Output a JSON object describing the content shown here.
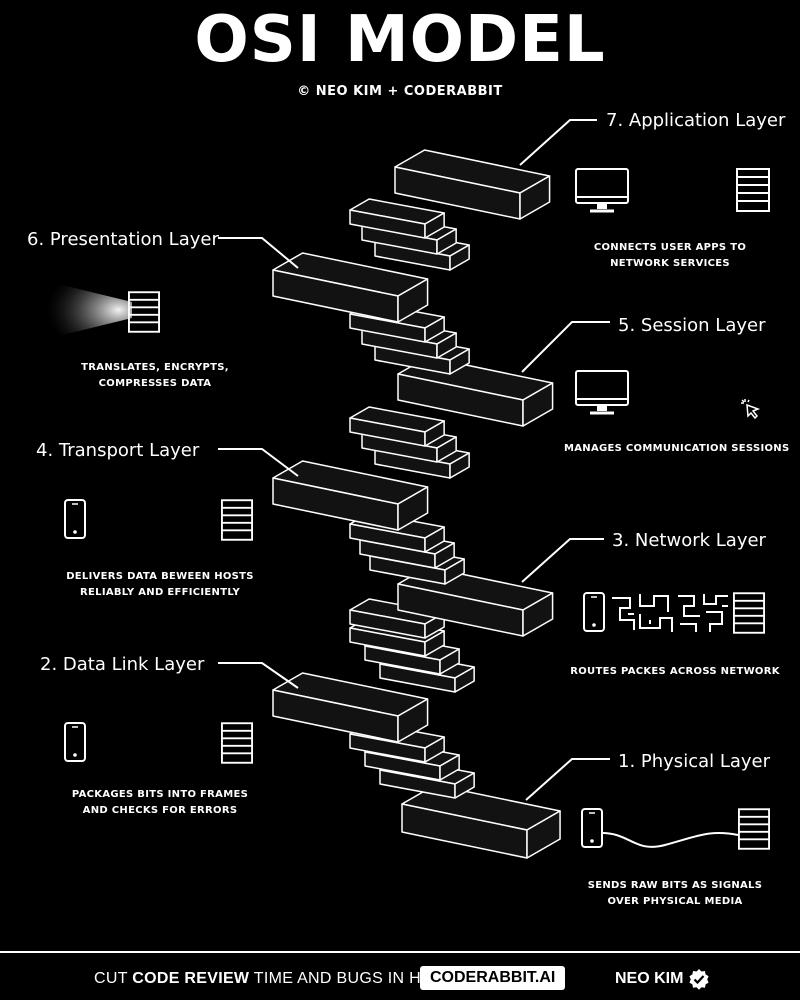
{
  "header": {
    "title": "OSI MODEL",
    "credit": "© NEO KIM + CODERABBIT"
  },
  "layers": [
    {
      "number": 7,
      "title": "7. Application Layer",
      "desc_lines": [
        "CONNECTS USER APPS TO",
        "NETWORK SERVICES"
      ],
      "icons": [
        "monitor-icon",
        "server-icon"
      ]
    },
    {
      "number": 6,
      "title": "6. Presentation Layer",
      "desc_lines": [
        "TRANSLATES, ENCRYPTS,",
        "COMPRESSES DATA"
      ],
      "icons": [
        "flashlight-beam-icon",
        "server-icon"
      ]
    },
    {
      "number": 5,
      "title": "5. Session Layer",
      "desc_lines": [
        "MANAGES COMMUNICATION SESSIONS"
      ],
      "icons": [
        "monitor-icon",
        "cursor-click-icon"
      ]
    },
    {
      "number": 4,
      "title": "4. Transport Layer",
      "desc_lines": [
        "DELIVERS DATA BEWEEN HOSTS",
        "RELIABLY  AND EFFICIENTLY"
      ],
      "icons": [
        "phone-icon",
        "server-icon"
      ]
    },
    {
      "number": 3,
      "title": "3. Network Layer",
      "desc_lines": [
        "ROUTES PACKES ACROSS NETWORK"
      ],
      "icons": [
        "phone-icon",
        "maze-icon",
        "server-icon"
      ]
    },
    {
      "number": 2,
      "title": "2. Data Link Layer",
      "desc_lines": [
        "PACKAGES BITS INTO FRAMES",
        "AND CHECKS FOR ERRORS"
      ],
      "icons": [
        "phone-icon",
        "server-icon"
      ]
    },
    {
      "number": 1,
      "title": "1. Physical Layer",
      "desc_lines": [
        "SENDS RAW BITS AS SIGNALS",
        "OVER PHYSICAL MEDIA"
      ],
      "icons": [
        "phone-icon",
        "cable-icon",
        "server-icon"
      ]
    }
  ],
  "footer": {
    "cta_prefix": "CUT ",
    "cta_bold": "CODE REVIEW",
    "cta_suffix": " TIME AND BUGS IN HALF :",
    "link": "CODERABBIT.AI",
    "author": "NEO KIM",
    "badge_icon": "verified-badge-icon"
  },
  "colors": {
    "background": "#000000",
    "foreground": "#ffffff",
    "step_fill": "#121212"
  }
}
